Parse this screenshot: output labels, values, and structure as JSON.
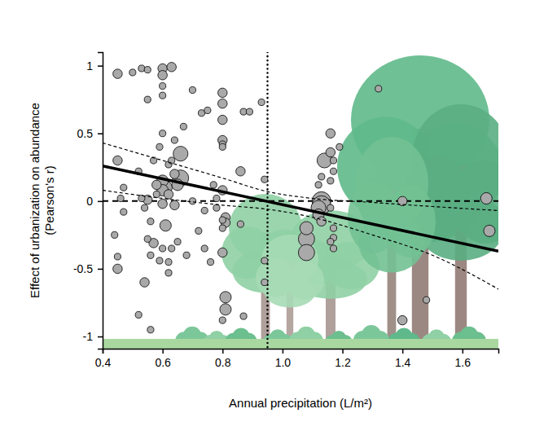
{
  "chart_data": {
    "type": "scatter",
    "x_label": "Annual precipitation (L/m²)",
    "y_label": [
      "Effect of urbanization on abundance",
      "(Pearson's r)"
    ],
    "xlim": [
      0.4,
      1.72
    ],
    "ylim": [
      -1.09,
      1.1
    ],
    "xticks": [
      0.4,
      0.6,
      0.8,
      {
        "value": 1,
        "label": "1.0"
      },
      1.2,
      1.4,
      1.6
    ],
    "yticks": [
      -1,
      -0.5,
      0,
      0.5,
      1
    ],
    "grid": false,
    "marker": "circle",
    "points": {
      "color": "#a9a9a9",
      "x": [
        0.45,
        0.45,
        0.44,
        0.45,
        0.47,
        0.47,
        0.46,
        0.45,
        0.5,
        0.53,
        0.55,
        0.52,
        0.55,
        0.53,
        0.54,
        0.56,
        0.55,
        0.57,
        0.56,
        0.54,
        0.52,
        0.56,
        0.55,
        0.57,
        0.58,
        0.58,
        0.6,
        0.6,
        0.6,
        0.6,
        0.6,
        0.59,
        0.62,
        0.6,
        0.6,
        0.61,
        0.62,
        0.6,
        0.61,
        0.6,
        0.62,
        0.59,
        0.63,
        0.62,
        0.63,
        0.64,
        0.63,
        0.64,
        0.65,
        0.66,
        0.66,
        0.65,
        0.67,
        0.68,
        0.64,
        0.7,
        0.7,
        0.72,
        0.73,
        0.75,
        0.74,
        0.74,
        0.76,
        0.77,
        0.78,
        0.78,
        0.8,
        0.8,
        0.8,
        0.8,
        0.8,
        0.8,
        0.8,
        0.81,
        0.8,
        0.81,
        0.8,
        0.8,
        0.81,
        0.81,
        0.8,
        0.86,
        0.86,
        0.87,
        0.89,
        0.87,
        0.93,
        0.94,
        0.94,
        0.94,
        1.08,
        1.08,
        1.08,
        1.13,
        1.13,
        1.12,
        1.14,
        1.12,
        1.13,
        1.12,
        1.13,
        1.16,
        1.16,
        1.17,
        1.17,
        1.16,
        1.16,
        1.17,
        1.17,
        1.16,
        1.17,
        1.19,
        1.32,
        1.4,
        1.4,
        1.48,
        1.68,
        1.69
      ],
      "y": [
        0.94,
        0.3,
        -0.25,
        -0.41,
        -0.08,
        0.1,
        0.02,
        -0.5,
        0.95,
        0.98,
        0.97,
        0.22,
        0.01,
        0.02,
        -0.05,
        -0.15,
        -0.28,
        -0.31,
        -0.4,
        -0.6,
        -0.84,
        -0.95,
        0.75,
        0.3,
        0.12,
        0.05,
        0.98,
        0.93,
        0.85,
        0.78,
        0.5,
        0.4,
        0.27,
        0.15,
        0.08,
        0.1,
        0.05,
        -0.02,
        -0.18,
        -0.35,
        -0.45,
        -0.44,
        -0.35,
        -0.53,
        0.99,
        0.45,
        0.3,
        0.2,
        0.12,
        0.35,
        0.17,
        -0.3,
        0.55,
        -0.4,
        -0.03,
        0.82,
        0.0,
        -0.22,
        0.65,
        0.67,
        -0.07,
        -0.35,
        -0.45,
        0.12,
        0.02,
        -0.05,
        0.8,
        0.72,
        0.6,
        0.45,
        0.42,
        0.4,
        0.08,
        -0.12,
        -0.14,
        -0.16,
        -0.2,
        -0.38,
        -0.71,
        -0.8,
        -0.88,
        0.22,
        -0.17,
        0.66,
        0.66,
        -0.85,
        0.73,
        0.16,
        -0.44,
        -0.6,
        -0.2,
        -0.28,
        -0.38,
        0.0,
        -0.03,
        -0.1,
        0.3,
        -0.05,
        -0.15,
        0.12,
        0.18,
        0.5,
        0.36,
        0.3,
        0.22,
        0.15,
        -0.05,
        -0.2,
        -0.27,
        -0.3,
        -0.35,
        0.4,
        0.83,
        0.0,
        -0.88,
        -0.73,
        0.02,
        -0.22
      ],
      "size": [
        2,
        2,
        1,
        1,
        1,
        1,
        1,
        2,
        1,
        1,
        1,
        1,
        2,
        1,
        1,
        1,
        1,
        2,
        1,
        2,
        1,
        1,
        1,
        1,
        2,
        1,
        2,
        2,
        1,
        1,
        1,
        1,
        1,
        3,
        3,
        4,
        2,
        2,
        3,
        1,
        1,
        1,
        1,
        1,
        2,
        1,
        1,
        2,
        3,
        5,
        6,
        1,
        1,
        1,
        2,
        1,
        1,
        1,
        1,
        1,
        1,
        1,
        1,
        1,
        1,
        1,
        2,
        2,
        2,
        2,
        1,
        1,
        2,
        2,
        1,
        2,
        1,
        2,
        3,
        3,
        1,
        2,
        1,
        1,
        1,
        1,
        1,
        1,
        1,
        1,
        4,
        6,
        6,
        8,
        8,
        3,
        5,
        5,
        2,
        1,
        1,
        2,
        2,
        1,
        1,
        1,
        1,
        1,
        1,
        1,
        1,
        1,
        1,
        2,
        2,
        1,
        3,
        3
      ]
    },
    "fit": {
      "x": [
        0.4,
        1.72
      ],
      "y": [
        0.26,
        -0.37
      ]
    },
    "ci_upper": {
      "x": [
        0.4,
        0.6,
        0.8,
        0.95,
        1.1,
        1.3,
        1.5,
        1.72
      ],
      "y": [
        0.43,
        0.3,
        0.17,
        0.07,
        0.02,
        -0.01,
        -0.04,
        -0.07
      ]
    },
    "ci_lower": {
      "x": [
        0.4,
        0.6,
        0.8,
        0.95,
        1.1,
        1.3,
        1.5,
        1.72
      ],
      "y": [
        0.08,
        0.02,
        -0.03,
        -0.06,
        -0.12,
        -0.25,
        -0.4,
        -0.65
      ]
    },
    "reference_lines": {
      "y": 0,
      "x": 0.95
    }
  }
}
